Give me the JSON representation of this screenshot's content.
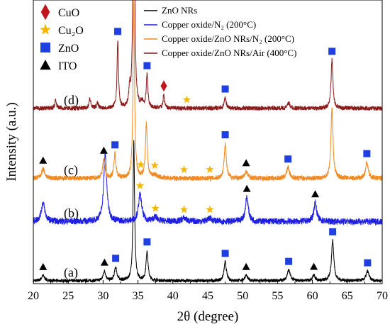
{
  "chart_data": {
    "type": "line",
    "xlabel": "2θ (degree)",
    "ylabel": "Intensity (a.u.)",
    "xlim": [
      20,
      70
    ],
    "xticks": [
      "20",
      "25",
      "30",
      "35",
      "40",
      "45",
      "50",
      "55",
      "60",
      "65",
      "70"
    ],
    "grid": false,
    "series": [
      {
        "name": "ZnO NRs",
        "curve_label": "(a)",
        "color": "#000000",
        "baseline": 0.0,
        "noise": 0.006,
        "peaks": [
          {
            "x": 21.4,
            "h": 0.02,
            "w": 0.25
          },
          {
            "x": 30.2,
            "h": 0.035,
            "w": 0.22
          },
          {
            "x": 31.8,
            "h": 0.05,
            "w": 0.2
          },
          {
            "x": 34.4,
            "h": 0.52,
            "w": 0.13
          },
          {
            "x": 36.3,
            "h": 0.11,
            "w": 0.17
          },
          {
            "x": 47.5,
            "h": 0.07,
            "w": 0.2
          },
          {
            "x": 50.5,
            "h": 0.02,
            "w": 0.25
          },
          {
            "x": 56.6,
            "h": 0.04,
            "w": 0.25
          },
          {
            "x": 60.2,
            "h": 0.02,
            "w": 0.25
          },
          {
            "x": 62.9,
            "h": 0.15,
            "w": 0.2
          },
          {
            "x": 67.9,
            "h": 0.035,
            "w": 0.25
          }
        ]
      },
      {
        "name": "Copper oxide/N₂ (200°C)",
        "curve_label": "(b)",
        "color": "#1f1fe0",
        "baseline": 0.22,
        "noise": 0.012,
        "peaks": [
          {
            "x": 21.4,
            "h": 0.07,
            "w": 0.3
          },
          {
            "x": 30.3,
            "h": 0.25,
            "w": 0.26
          },
          {
            "x": 35.3,
            "h": 0.1,
            "w": 0.28
          },
          {
            "x": 37.5,
            "h": 0.015,
            "w": 0.4
          },
          {
            "x": 41.6,
            "h": 0.012,
            "w": 0.4
          },
          {
            "x": 45.3,
            "h": 0.012,
            "w": 0.4
          },
          {
            "x": 50.6,
            "h": 0.09,
            "w": 0.25
          },
          {
            "x": 60.4,
            "h": 0.07,
            "w": 0.25
          }
        ]
      },
      {
        "name": "Copper oxide/ZnO NRs/N₂ (200°C)",
        "curve_label": "(c)",
        "color": "#f08a24",
        "baseline": 0.38,
        "noise": 0.009,
        "peaks": [
          {
            "x": 21.4,
            "h": 0.035,
            "w": 0.28
          },
          {
            "x": 30.1,
            "h": 0.07,
            "w": 0.2
          },
          {
            "x": 31.7,
            "h": 0.09,
            "w": 0.18
          },
          {
            "x": 34.4,
            "h": 0.65,
            "w": 0.13
          },
          {
            "x": 36.2,
            "h": 0.2,
            "w": 0.16
          },
          {
            "x": 37.4,
            "h": 0.012,
            "w": 0.4
          },
          {
            "x": 47.5,
            "h": 0.13,
            "w": 0.18
          },
          {
            "x": 50.5,
            "h": 0.025,
            "w": 0.25
          },
          {
            "x": 56.5,
            "h": 0.04,
            "w": 0.25
          },
          {
            "x": 62.8,
            "h": 0.26,
            "w": 0.18
          },
          {
            "x": 67.8,
            "h": 0.06,
            "w": 0.22
          }
        ]
      },
      {
        "name": "Copper oxide/ZnO NRs/Air (400°C)",
        "curve_label": "(d)",
        "color": "#8b1a1a",
        "baseline": 0.64,
        "noise": 0.008,
        "peaks": [
          {
            "x": 23.2,
            "h": 0.03,
            "w": 0.15
          },
          {
            "x": 28.1,
            "h": 0.035,
            "w": 0.15
          },
          {
            "x": 29.2,
            "h": 0.02,
            "w": 0.15
          },
          {
            "x": 32.1,
            "h": 0.25,
            "w": 0.12
          },
          {
            "x": 33.8,
            "h": 0.06,
            "w": 0.12
          },
          {
            "x": 34.4,
            "h": 1.2,
            "w": 0.12
          },
          {
            "x": 35.6,
            "h": 0.02,
            "w": 0.2
          },
          {
            "x": 36.3,
            "h": 0.12,
            "w": 0.14
          },
          {
            "x": 38.7,
            "h": 0.05,
            "w": 0.13
          },
          {
            "x": 47.5,
            "h": 0.04,
            "w": 0.16
          },
          {
            "x": 56.6,
            "h": 0.02,
            "w": 0.2
          },
          {
            "x": 62.8,
            "h": 0.18,
            "w": 0.16
          }
        ]
      }
    ],
    "phase_legend": [
      {
        "label": "CuO",
        "marker": "diamond",
        "color": "#c0141e"
      },
      {
        "label": "Cu₂O",
        "marker": "star",
        "color": "#f5b800"
      },
      {
        "label": "ZnO",
        "marker": "square",
        "color": "#1f3fe0"
      },
      {
        "label": "ITO",
        "marker": "triangle",
        "color": "#000000"
      }
    ],
    "phase_markers": [
      {
        "series": 0,
        "x": 21.4,
        "marker": "triangle"
      },
      {
        "series": 0,
        "x": 30.2,
        "marker": "triangle"
      },
      {
        "series": 0,
        "x": 31.8,
        "marker": "square"
      },
      {
        "series": 0,
        "x": 36.3,
        "marker": "square"
      },
      {
        "series": 0,
        "x": 47.5,
        "marker": "square"
      },
      {
        "series": 0,
        "x": 50.5,
        "marker": "triangle"
      },
      {
        "series": 0,
        "x": 56.6,
        "marker": "square"
      },
      {
        "series": 0,
        "x": 60.2,
        "marker": "triangle"
      },
      {
        "series": 0,
        "x": 62.9,
        "marker": "square"
      },
      {
        "series": 0,
        "x": 67.9,
        "marker": "square"
      },
      {
        "series": 1,
        "x": 35.3,
        "marker": "star"
      },
      {
        "series": 1,
        "x": 37.5,
        "marker": "star"
      },
      {
        "series": 1,
        "x": 41.6,
        "marker": "star"
      },
      {
        "series": 1,
        "x": 45.3,
        "marker": "star"
      },
      {
        "series": 1,
        "x": 50.6,
        "marker": "triangle"
      },
      {
        "series": 1,
        "x": 60.4,
        "marker": "triangle"
      },
      {
        "series": 2,
        "x": 21.4,
        "marker": "triangle"
      },
      {
        "series": 2,
        "x": 30.1,
        "marker": "triangle"
      },
      {
        "series": 2,
        "x": 31.7,
        "marker": "square"
      },
      {
        "series": 2,
        "x": 35.4,
        "marker": "star"
      },
      {
        "series": 2,
        "x": 37.4,
        "marker": "star"
      },
      {
        "series": 2,
        "x": 41.6,
        "marker": "star"
      },
      {
        "series": 2,
        "x": 45.3,
        "marker": "star"
      },
      {
        "series": 2,
        "x": 47.5,
        "marker": "square"
      },
      {
        "series": 2,
        "x": 50.5,
        "marker": "triangle"
      },
      {
        "series": 2,
        "x": 56.5,
        "marker": "square"
      },
      {
        "series": 2,
        "x": 67.8,
        "marker": "square"
      },
      {
        "series": 3,
        "x": 32.1,
        "marker": "square"
      },
      {
        "series": 3,
        "x": 36.3,
        "marker": "square"
      },
      {
        "series": 3,
        "x": 38.7,
        "marker": "diamond"
      },
      {
        "series": 3,
        "x": 42.0,
        "marker": "star"
      },
      {
        "series": 3,
        "x": 47.5,
        "marker": "square"
      },
      {
        "series": 3,
        "x": 62.8,
        "marker": "square"
      }
    ]
  }
}
